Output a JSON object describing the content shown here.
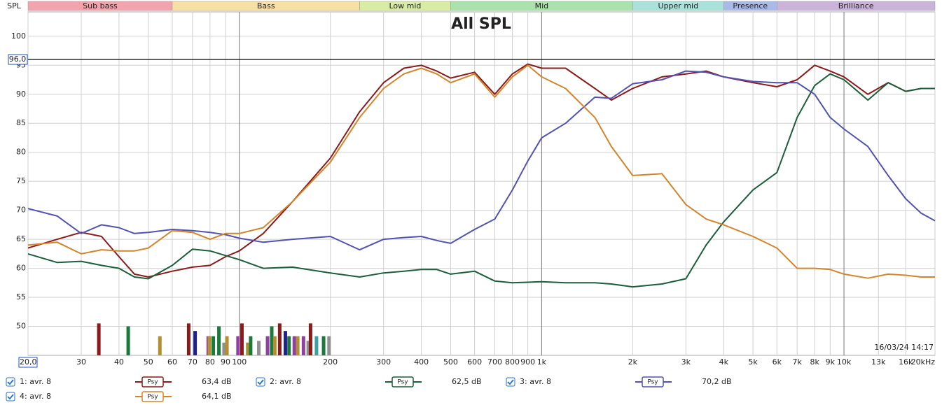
{
  "chart_data": {
    "type": "line",
    "title": "All SPL",
    "y_label": "SPL",
    "timestamp": "16/03/24 14:17",
    "log_x": true,
    "grid": true,
    "xlim": [
      20,
      20000
    ],
    "ylim": [
      45,
      104.2
    ],
    "xticks": [
      {
        "value": 20,
        "label": "20,0"
      },
      30,
      40,
      50,
      60,
      70,
      80,
      90,
      100,
      200,
      300,
      400,
      500,
      600,
      700,
      800,
      900,
      {
        "value": 1000,
        "label": "1k"
      },
      {
        "value": 2000,
        "label": "2k"
      },
      {
        "value": 3000,
        "label": "3k"
      },
      {
        "value": 4000,
        "label": "4k"
      },
      {
        "value": 5000,
        "label": "5k"
      },
      {
        "value": 6000,
        "label": "6k"
      },
      {
        "value": 7000,
        "label": "7k"
      },
      {
        "value": 8000,
        "label": "8k"
      },
      {
        "value": 9000,
        "label": "9k"
      },
      {
        "value": 10000,
        "label": "10k"
      },
      {
        "value": 13000,
        "label": "13k"
      },
      {
        "value": 16000,
        "label": "16k"
      },
      {
        "value": 20000,
        "label": "20kHz"
      }
    ],
    "yticks": [
      50,
      55,
      60,
      65,
      70,
      75,
      80,
      85,
      90,
      95,
      100
    ],
    "reference_line": {
      "value": 96,
      "label": "96,0"
    },
    "bands": [
      {
        "name": "Sub bass",
        "from": 20,
        "to": 60,
        "color": "#f2a3ab"
      },
      {
        "name": "Bass",
        "from": 60,
        "to": 250,
        "color": "#f8e0a4"
      },
      {
        "name": "Low mid",
        "from": 250,
        "to": 500,
        "color": "#d9eca4"
      },
      {
        "name": "Mid",
        "from": 500,
        "to": 2000,
        "color": "#a9e2aa"
      },
      {
        "name": "Upper mid",
        "from": 2000,
        "to": 4000,
        "color": "#a9e2da"
      },
      {
        "name": "Presence",
        "from": 4000,
        "to": 6000,
        "color": "#a9bae9"
      },
      {
        "name": "Brilliance",
        "from": 6000,
        "to": 20000,
        "color": "#cbb3da"
      }
    ],
    "x": [
      20,
      25,
      30,
      35,
      40,
      45,
      50,
      60,
      70,
      80,
      90,
      100,
      120,
      150,
      200,
      250,
      300,
      350,
      400,
      450,
      500,
      600,
      700,
      800,
      900,
      1000,
      1200,
      1500,
      1700,
      2000,
      2500,
      3000,
      3500,
      4000,
      5000,
      6000,
      7000,
      8000,
      9000,
      10000,
      12000,
      14000,
      16000,
      18000,
      20000
    ],
    "series": [
      {
        "name": "1: avr. 8",
        "color": "#8b1a1a",
        "readout": "63,4 dB",
        "values": [
          63.5,
          65,
          66.2,
          65.5,
          62,
          59,
          58.5,
          59.5,
          60.2,
          60.5,
          62,
          63,
          66,
          71.5,
          79,
          87,
          92,
          94.5,
          95,
          94,
          92.8,
          93.8,
          90,
          93.5,
          95.2,
          94.5,
          94.5,
          91,
          89,
          91,
          93,
          93.5,
          94,
          93,
          92,
          91.3,
          92.5,
          95,
          94,
          93,
          90,
          92,
          90.5,
          91,
          91
        ]
      },
      {
        "name": "2: avr. 8",
        "color": "#1b5e3b",
        "readout": "62,5 dB",
        "values": [
          62.5,
          61,
          61.2,
          60.5,
          60,
          58.5,
          58.2,
          60.5,
          63.3,
          63,
          62.2,
          61.5,
          60,
          60.2,
          59.2,
          58.5,
          59.2,
          59.5,
          59.8,
          59.8,
          59,
          59.5,
          57.8,
          57.5,
          57.6,
          57.7,
          57.5,
          57.5,
          57.3,
          56.8,
          57.3,
          58.2,
          64,
          68,
          73.5,
          76.5,
          86,
          91.5,
          93.5,
          92.5,
          89,
          92,
          90.5,
          91,
          91
        ]
      },
      {
        "name": "3: avr. 8",
        "color": "#5252b2",
        "readout": "70,2 dB",
        "values": [
          70.3,
          69,
          66,
          67.5,
          67,
          66,
          66.2,
          66.7,
          66.5,
          66.2,
          65.8,
          65.2,
          64.5,
          65,
          65.5,
          63.2,
          65,
          65.3,
          65.5,
          64.8,
          64.3,
          66.7,
          68.5,
          73.5,
          78.5,
          82.5,
          85,
          89.5,
          89.3,
          91.8,
          92.5,
          94,
          93.8,
          93,
          92.2,
          92,
          92,
          90,
          86,
          84,
          81,
          76,
          72,
          69.5,
          68.2
        ]
      },
      {
        "name": "4: avr. 8",
        "color": "#d2852a",
        "readout": "64,1 dB",
        "values": [
          64,
          64.5,
          62.5,
          63.2,
          63,
          63,
          63.5,
          66.5,
          66.2,
          65,
          66,
          66,
          67,
          71.5,
          78.3,
          86,
          91,
          93.5,
          94.5,
          93.5,
          92,
          93.5,
          89.5,
          93,
          95,
          93,
          91,
          86,
          81,
          76,
          76.3,
          71,
          68.5,
          67.5,
          65.5,
          63.5,
          60,
          60,
          59.8,
          59,
          58.3,
          59,
          58.8,
          58.5,
          58.5
        ]
      }
    ],
    "psy_label": "Psy",
    "peak_bars": {
      "x": [
        34.3,
        42.9,
        54.6,
        68,
        71.4,
        78.9,
        79.6,
        82,
        85.6,
        89,
        91,
        99,
        102,
        106.6,
        109,
        116,
        124,
        128,
        131,
        136,
        142,
        146,
        152,
        156,
        163,
        169,
        172,
        180,
        190,
        198
      ],
      "values": [
        50.5,
        50,
        48.3,
        50.5,
        49.2,
        48.3,
        48.3,
        48.3,
        50,
        47.2,
        48.3,
        48.3,
        50.5,
        47.2,
        48.3,
        47.5,
        48.3,
        50,
        48.3,
        50.5,
        49.2,
        48.3,
        48.3,
        48.3,
        48.3,
        47.5,
        50.5,
        48.3,
        48.3,
        48.3
      ],
      "colors": [
        "#8b1a1a",
        "#1b7a3b",
        "#b09030",
        "#8b1a1a",
        "#202090",
        "#9040a0",
        "#b09030",
        "#1b7a3b",
        "#1b7a3b",
        "#909090",
        "#b09030",
        "#9040a0",
        "#8b1a1a",
        "#b09030",
        "#1b7a3b",
        "#909090",
        "#9040a0",
        "#1b7a3b",
        "#b09030",
        "#8b1a1a",
        "#202090",
        "#1b7a3b",
        "#9040a0",
        "#b09030",
        "#9040a0",
        "#909090",
        "#8b1a1a",
        "#40a0a0",
        "#1b7a3b",
        "#909090"
      ]
    }
  }
}
